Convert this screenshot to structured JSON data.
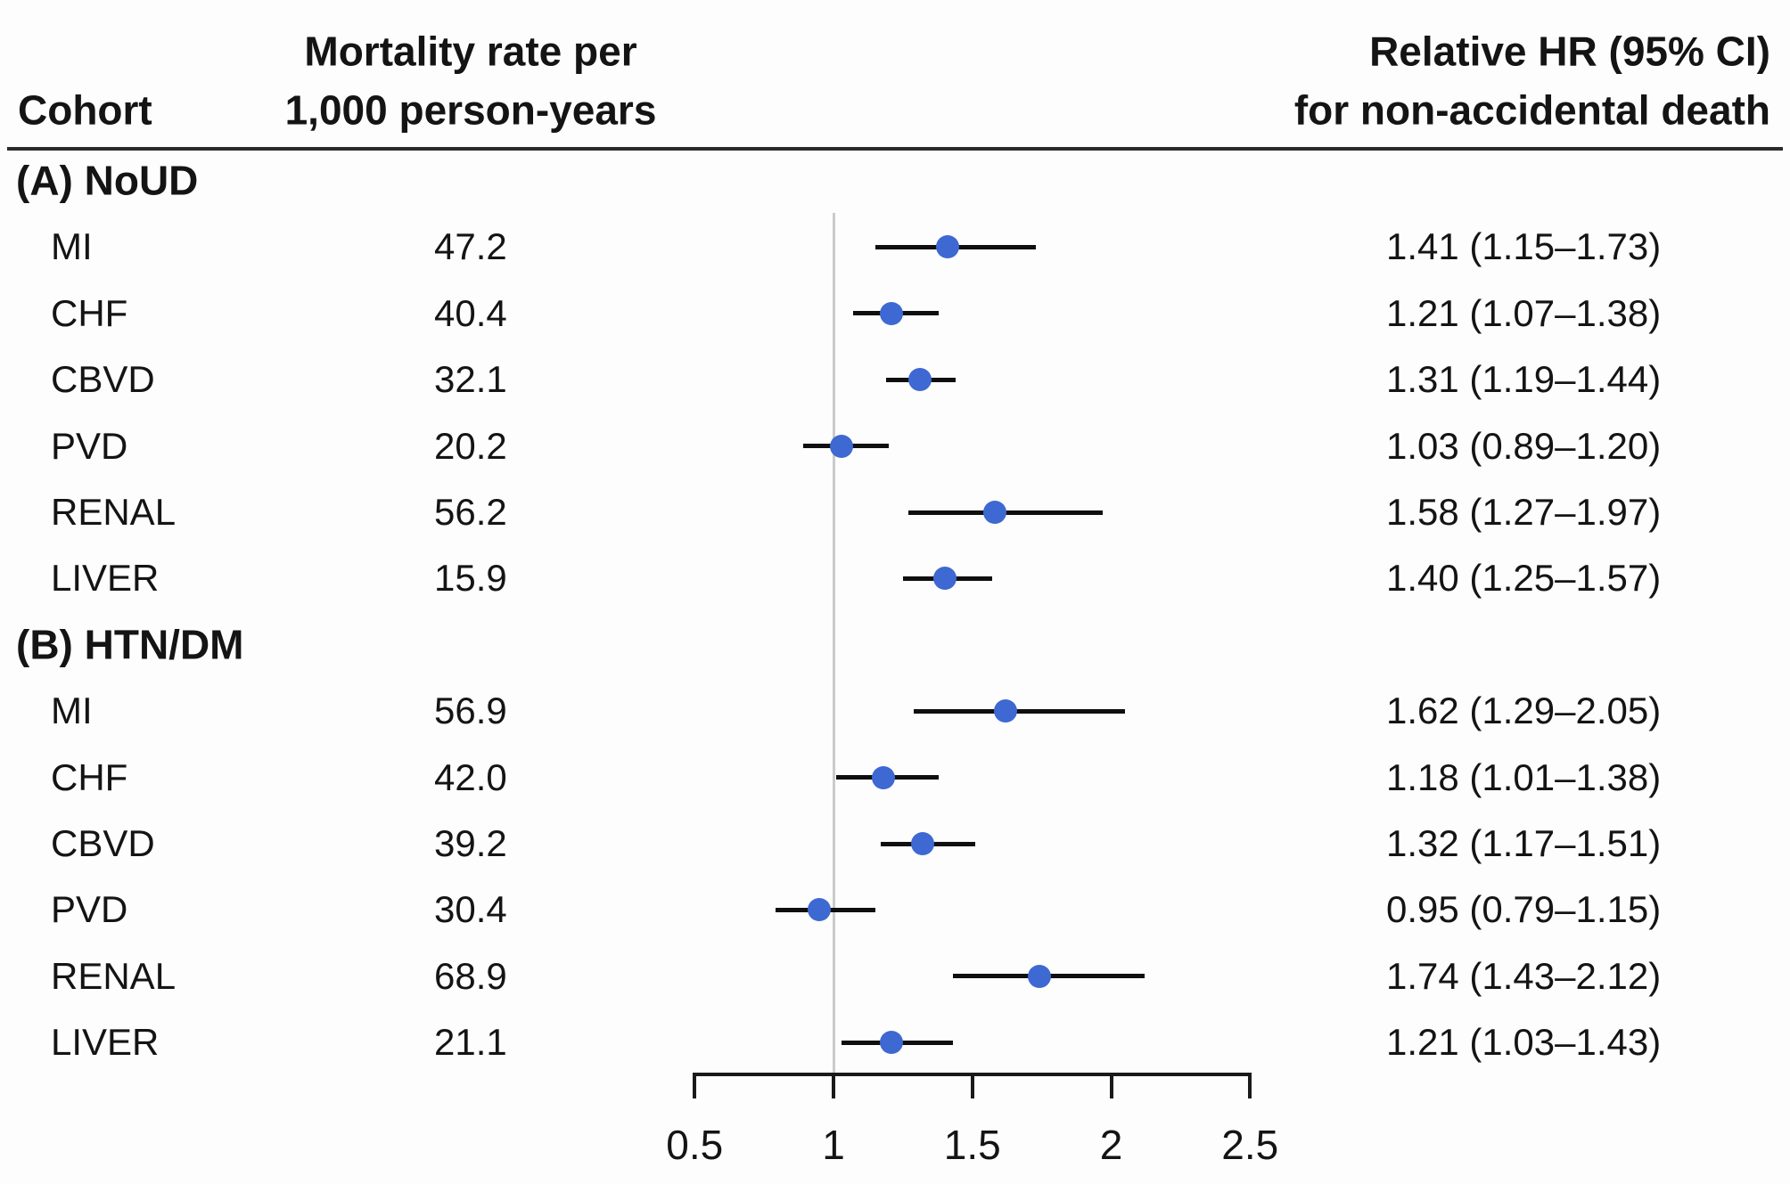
{
  "header": {
    "cohort_label": "Cohort",
    "rate_label_line1": "Mortality rate per",
    "rate_label_line2": "1,000 person-years",
    "hr_label_line1": "Relative HR (95% CI)",
    "hr_label_line2": "for non-accidental death"
  },
  "colors": {
    "marker": "#3e68d2",
    "ci_line": "#0f0f0f",
    "ref_line": "#cbcbcb",
    "axis": "#1a1a1a",
    "text": "#141414"
  },
  "chart_data": {
    "type": "forest",
    "x_axis": {
      "tick_values": [
        0.5,
        1,
        1.5,
        2,
        2.5
      ],
      "tick_labels": [
        "0.5",
        "1",
        "1.5",
        "2",
        "2.5"
      ],
      "range": [
        0.5,
        2.5
      ],
      "reference_line_x": 1
    },
    "sections": [
      {
        "label": "(A) NoUD",
        "rows": [
          {
            "cohort": "MI",
            "rate": "47.2",
            "hr": 1.41,
            "ci_low": 1.15,
            "ci_high": 1.73,
            "hr_text": "1.41 (1.15–1.73)"
          },
          {
            "cohort": "CHF",
            "rate": "40.4",
            "hr": 1.21,
            "ci_low": 1.07,
            "ci_high": 1.38,
            "hr_text": "1.21 (1.07–1.38)"
          },
          {
            "cohort": "CBVD",
            "rate": "32.1",
            "hr": 1.31,
            "ci_low": 1.19,
            "ci_high": 1.44,
            "hr_text": "1.31 (1.19–1.44)"
          },
          {
            "cohort": "PVD",
            "rate": "20.2",
            "hr": 1.03,
            "ci_low": 0.89,
            "ci_high": 1.2,
            "hr_text": "1.03 (0.89–1.20)"
          },
          {
            "cohort": "RENAL",
            "rate": "56.2",
            "hr": 1.58,
            "ci_low": 1.27,
            "ci_high": 1.97,
            "hr_text": "1.58 (1.27–1.97)"
          },
          {
            "cohort": "LIVER",
            "rate": "15.9",
            "hr": 1.4,
            "ci_low": 1.25,
            "ci_high": 1.57,
            "hr_text": "1.40 (1.25–1.57)"
          }
        ]
      },
      {
        "label": "(B) HTN/DM",
        "rows": [
          {
            "cohort": "MI",
            "rate": "56.9",
            "hr": 1.62,
            "ci_low": 1.29,
            "ci_high": 2.05,
            "hr_text": "1.62 (1.29–2.05)"
          },
          {
            "cohort": "CHF",
            "rate": "42.0",
            "hr": 1.18,
            "ci_low": 1.01,
            "ci_high": 1.38,
            "hr_text": "1.18 (1.01–1.38)"
          },
          {
            "cohort": "CBVD",
            "rate": "39.2",
            "hr": 1.32,
            "ci_low": 1.17,
            "ci_high": 1.51,
            "hr_text": "1.32 (1.17–1.51)"
          },
          {
            "cohort": "PVD",
            "rate": "30.4",
            "hr": 0.95,
            "ci_low": 0.79,
            "ci_high": 1.15,
            "hr_text": "0.95 (0.79–1.15)"
          },
          {
            "cohort": "RENAL",
            "rate": "68.9",
            "hr": 1.74,
            "ci_low": 1.43,
            "ci_high": 2.12,
            "hr_text": "1.74 (1.43–2.12)"
          },
          {
            "cohort": "LIVER",
            "rate": "21.1",
            "hr": 1.21,
            "ci_low": 1.03,
            "ci_high": 1.43,
            "hr_text": "1.21 (1.03–1.43)"
          }
        ]
      }
    ]
  }
}
